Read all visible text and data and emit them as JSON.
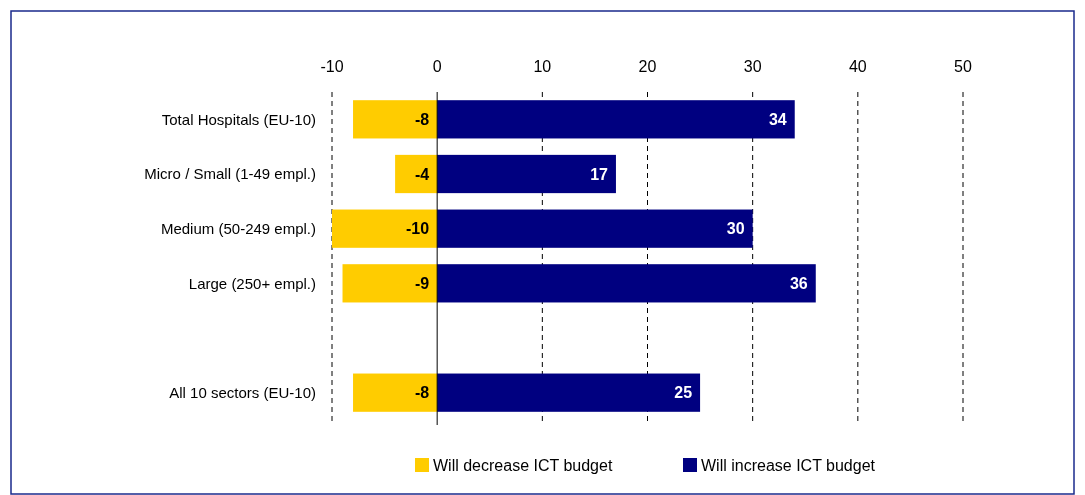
{
  "chart_data": {
    "type": "bar",
    "orientation": "horizontal",
    "stacked": true,
    "categories": [
      "Total Hospitals (EU-10)",
      "Micro / Small (1-49 empl.)",
      "Medium (50-249 empl.)",
      "Large (250+ empl.)",
      null,
      "All 10 sectors (EU-10)"
    ],
    "series": [
      {
        "name": "Will decrease ICT budget",
        "color": "#ffcc00",
        "values": [
          -8,
          -4,
          -10,
          -9,
          null,
          -8
        ]
      },
      {
        "name": "Will increase ICT budget",
        "color": "#000080",
        "values": [
          34,
          17,
          30,
          36,
          null,
          25
        ]
      }
    ],
    "xlim": [
      -10,
      50
    ],
    "xticks": [
      -10,
      0,
      10,
      20,
      30,
      40,
      50
    ],
    "grid": "x",
    "legend": "bottom",
    "data_labels": true
  }
}
